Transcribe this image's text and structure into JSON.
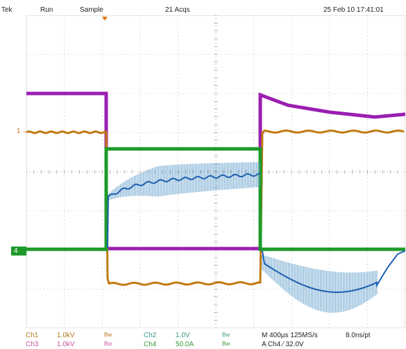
{
  "header": {
    "brand": "Tek",
    "run_state": "Run",
    "acq_mode": "Sample",
    "acq_count": "21 Acqs",
    "datetime": "25 Feb 10 17:41:01"
  },
  "markers": {
    "ch1": "1",
    "ch4": "4"
  },
  "footer": {
    "ch1_label": "Ch1",
    "ch1_scale": "1.0kV",
    "ch1_bw": "Bw",
    "ch2_label": "Ch2",
    "ch2_scale": "1.0V",
    "ch2_bw": "Bw",
    "ch3_label": "Ch3",
    "ch3_scale": "1.0kV",
    "ch3_bw": "Bw",
    "ch4_label": "Ch4",
    "ch4_scale": "50.0A",
    "ch4_bw": "Bw",
    "timebase": "M 400µs 125MS/s",
    "resolution": "8.0ns/pt",
    "trigger": "A  Ch4  ⁄  32.0V"
  },
  "colors": {
    "ch1": "#c07a10",
    "ch2": "#1b5fb0",
    "ch3": "#9b1fb0",
    "ch4": "#1f9a2a",
    "grid": "#9a9a9a",
    "label_ch1": "#b07818",
    "label_ch3": "#c8559a",
    "label_ch2": "#3a9a8a",
    "label_ch4": "#3a9a3a",
    "trigger_marker": "#e07a1a"
  }
}
